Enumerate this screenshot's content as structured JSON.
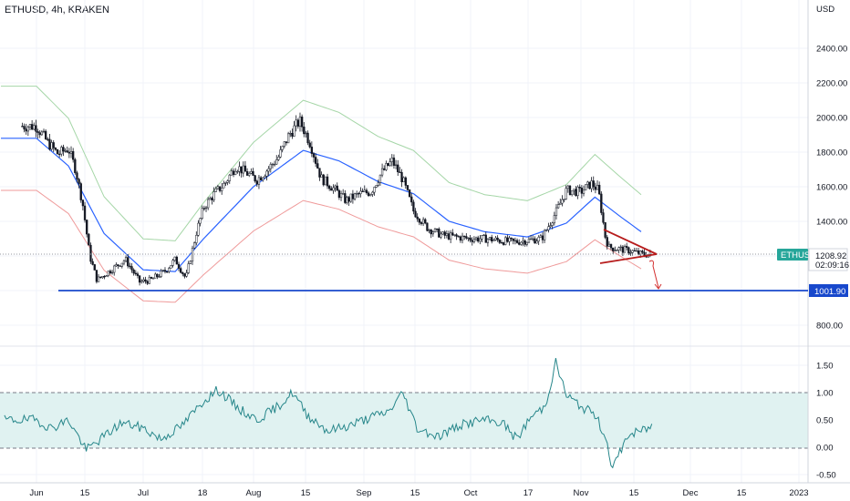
{
  "header": {
    "symbol": "ETHUSD, 4h, KRAKEN"
  },
  "price_axis": {
    "currency": "USD",
    "ticks": [
      "2400.00",
      "2200.00",
      "2000.00",
      "1800.00",
      "1600.00",
      "1400.00",
      "800.00"
    ],
    "tick_values": [
      2400,
      2200,
      2000,
      1800,
      1600,
      1400,
      800
    ]
  },
  "osc_axis": {
    "ticks": [
      "1.50",
      "1.00",
      "0.50",
      "0.00",
      "-0.50"
    ],
    "tick_values": [
      1.5,
      1.0,
      0.5,
      0.0,
      -0.5
    ]
  },
  "time_axis": {
    "labels": [
      "Jun",
      "15",
      "Jul",
      "18",
      "Aug",
      "15",
      "Sep",
      "15",
      "Oct",
      "17",
      "Nov",
      "15",
      "Dec",
      "15",
      "2023"
    ]
  },
  "tags": {
    "ticker": "ETHUSD",
    "last_price": "1208.92",
    "countdown": "02:09:16",
    "support_price": "1001.90"
  },
  "colors": {
    "candle_up": "#131722",
    "candle_down": "#131722",
    "ma_blue": "#2962ff",
    "band_upper": "#a5d6a7",
    "band_lower": "#ef9a9a",
    "support_line": "#1848cc",
    "pattern_red": "#b71c1c",
    "oscillator": "#26868a",
    "osc_fill": "#e0f2f1",
    "ticker_bg": "#26a69a"
  },
  "chart_data": [
    {
      "type": "line",
      "title": "ETHUSD, 4h, KRAKEN",
      "series": [
        {
          "name": "ETHUSD",
          "x": [
            "Jun 1",
            "Jun 4",
            "Jun 7",
            "Jun 10",
            "Jun 12",
            "Jun 14",
            "Jun 16",
            "Jun 18",
            "Jun 22",
            "Jun 26",
            "Jun 30",
            "Jul 3",
            "Jul 7",
            "Jul 10",
            "Jul 13",
            "Jul 16",
            "Jul 18",
            "Jul 21",
            "Jul 24",
            "Jul 27",
            "Jul 30",
            "Aug 2",
            "Aug 5",
            "Aug 8",
            "Aug 11",
            "Aug 14",
            "Aug 17",
            "Aug 20",
            "Aug 23",
            "Aug 27",
            "Aug 31",
            "Sep 3",
            "Sep 6",
            "Sep 9",
            "Sep 12",
            "Sep 15",
            "Sep 19",
            "Sep 23",
            "Sep 27",
            "Oct 1",
            "Oct 5",
            "Oct 9",
            "Oct 13",
            "Oct 17",
            "Oct 21",
            "Oct 25",
            "Oct 28",
            "Nov 1",
            "Nov 4",
            "Nov 6",
            "Nov 8",
            "Nov 9",
            "Nov 12",
            "Nov 15",
            "Nov 18",
            "Nov 21"
          ],
          "values": [
            1950,
            1860,
            1790,
            1820,
            1700,
            1500,
            1200,
            1060,
            1120,
            1180,
            1050,
            1060,
            1110,
            1180,
            1070,
            1340,
            1480,
            1560,
            1620,
            1720,
            1680,
            1640,
            1700,
            1770,
            1900,
            1980,
            1850,
            1650,
            1600,
            1520,
            1560,
            1570,
            1680,
            1750,
            1640,
            1460,
            1360,
            1320,
            1310,
            1300,
            1300,
            1290,
            1280,
            1290,
            1300,
            1450,
            1580,
            1570,
            1620,
            1580,
            1300,
            1250,
            1240,
            1230,
            1210,
            1208.92
          ]
        },
        {
          "name": "",
          "x": [
            "Jun 1",
            "Jun 10",
            "Jun 20",
            "Jul 1",
            "Jul 10",
            "Jul 18",
            "Aug 1",
            "Aug 15",
            "Aug 25",
            "Sep 5",
            "Sep 15",
            "Sep 25",
            "Oct 5",
            "Oct 17",
            "Oct 28",
            "Nov 5",
            "Nov 12",
            "Nov 18"
          ],
          "values": [
            1880,
            1720,
            1330,
            1120,
            1110,
            1300,
            1600,
            1810,
            1750,
            1630,
            1560,
            1400,
            1340,
            1310,
            1390,
            1540,
            1430,
            1340
          ]
        }
      ],
      "annotations": {
        "support_level": 1001.9,
        "last_price": 1208.92,
        "pattern": "triangle"
      },
      "ylim": [
        720,
        2600
      ]
    },
    {
      "type": "line",
      "series": [
        {
          "name": "",
          "x": [
            "Jun 1",
            "Jun 5",
            "Jun 10",
            "Jun 15",
            "Jun 20",
            "Jun 25",
            "Jul 1",
            "Jul 6",
            "Jul 12",
            "Jul 18",
            "Jul 22",
            "Jul 28",
            "Aug 2",
            "Aug 8",
            "Aug 12",
            "Aug 16",
            "Aug 22",
            "Aug 28",
            "Sep 3",
            "Sep 8",
            "Sep 12",
            "Sep 16",
            "Sep 22",
            "Sep 28",
            "Oct 4",
            "Oct 10",
            "Oct 14",
            "Oct 18",
            "Oct 22",
            "Oct 25",
            "Oct 28",
            "Nov 1",
            "Nov 5",
            "Nov 8",
            "Nov 10",
            "Nov 14",
            "Nov 18",
            "Nov 21"
          ],
          "values": [
            0.5,
            0.35,
            0.5,
            -0.05,
            0.2,
            0.45,
            0.35,
            0.15,
            0.4,
            0.85,
            1.05,
            0.7,
            0.5,
            0.75,
            1.0,
            0.6,
            0.3,
            0.4,
            0.55,
            0.65,
            1.0,
            0.35,
            0.2,
            0.4,
            0.5,
            0.45,
            0.15,
            0.55,
            0.75,
            1.55,
            0.95,
            0.75,
            0.6,
            0.2,
            -0.4,
            0.2,
            0.3,
            0.38
          ]
        }
      ],
      "reference_lines": [
        1.0,
        0.0
      ],
      "ylim": [
        -0.6,
        1.65
      ]
    }
  ]
}
